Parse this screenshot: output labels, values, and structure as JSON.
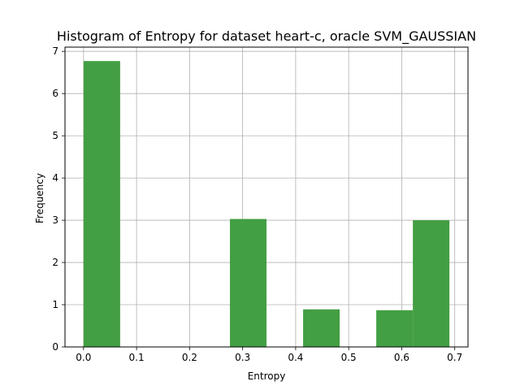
{
  "chart_data": {
    "type": "bar",
    "title": "Histogram of Entropy for dataset heart-c, oracle SVM_GAUSSIAN",
    "xlabel": "Entropy",
    "ylabel": "Frequency",
    "xlim": [
      -0.035,
      0.725
    ],
    "ylim": [
      0,
      7.1
    ],
    "xticks": [
      0.0,
      0.1,
      0.2,
      0.3,
      0.4,
      0.5,
      0.6,
      0.7
    ],
    "xtick_labels": [
      "0.0",
      "0.1",
      "0.2",
      "0.3",
      "0.4",
      "0.5",
      "0.6",
      "0.7"
    ],
    "yticks": [
      0,
      1,
      2,
      3,
      4,
      5,
      6,
      7
    ],
    "ytick_labels": [
      "0",
      "1",
      "2",
      "3",
      "4",
      "5",
      "6",
      "7"
    ],
    "grid": true,
    "bar_color": "#439f43",
    "bins": [
      {
        "x0": 0.0,
        "x1": 0.069,
        "value": 6.77
      },
      {
        "x0": 0.069,
        "x1": 0.138,
        "value": 0
      },
      {
        "x0": 0.138,
        "x1": 0.207,
        "value": 0
      },
      {
        "x0": 0.207,
        "x1": 0.276,
        "value": 0
      },
      {
        "x0": 0.276,
        "x1": 0.345,
        "value": 3.03
      },
      {
        "x0": 0.345,
        "x1": 0.414,
        "value": 0
      },
      {
        "x0": 0.414,
        "x1": 0.483,
        "value": 0.89
      },
      {
        "x0": 0.483,
        "x1": 0.552,
        "value": 0
      },
      {
        "x0": 0.552,
        "x1": 0.621,
        "value": 0.87
      },
      {
        "x0": 0.621,
        "x1": 0.69,
        "value": 3.0
      }
    ]
  }
}
